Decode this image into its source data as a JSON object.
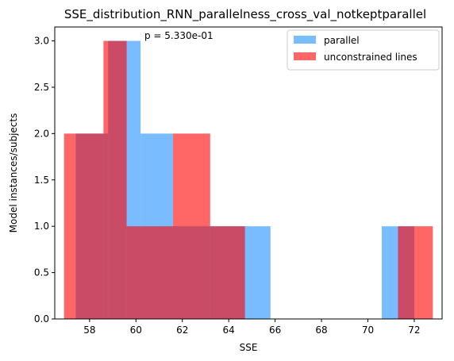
{
  "chart_data": {
    "type": "bar",
    "title": "SSE_distribution_RNN_parallelness_cross_val_notkeptparallel",
    "xlabel": "SSE",
    "ylabel": "Model instances/subjects",
    "xlim": [
      56.5,
      73.2
    ],
    "ylim": [
      0,
      3.15
    ],
    "x_ticks": [
      58,
      60,
      62,
      64,
      66,
      68,
      70,
      72
    ],
    "y_ticks": [
      0.0,
      0.5,
      1.0,
      1.5,
      2.0,
      2.5,
      3.0
    ],
    "annotation": "p = 5.330e-01",
    "legend_position": "top-right",
    "grid": false,
    "series": [
      {
        "name": "parallel",
        "color": "#1f8fff",
        "bins": [
          {
            "x0": 57.4,
            "x1": 58.8,
            "count": 2
          },
          {
            "x0": 58.8,
            "x1": 60.2,
            "count": 3
          },
          {
            "x0": 60.2,
            "x1": 61.6,
            "count": 2
          },
          {
            "x0": 61.6,
            "x1": 63.0,
            "count": 1
          },
          {
            "x0": 63.0,
            "x1": 64.4,
            "count": 1
          },
          {
            "x0": 64.4,
            "x1": 65.8,
            "count": 1
          },
          {
            "x0": 70.6,
            "x1": 72.0,
            "count": 1
          }
        ]
      },
      {
        "name": "unconstrained lines",
        "color": "#ff0000",
        "bins": [
          {
            "x0": 56.9,
            "x1": 57.4,
            "count": 2
          },
          {
            "x0": 57.4,
            "x1": 58.6,
            "count": 2
          },
          {
            "x0": 58.6,
            "x1": 59.6,
            "count": 3
          },
          {
            "x0": 59.6,
            "x1": 61.6,
            "count": 1
          },
          {
            "x0": 61.6,
            "x1": 63.2,
            "count": 2
          },
          {
            "x0": 63.2,
            "x1": 64.7,
            "count": 1
          },
          {
            "x0": 71.3,
            "x1": 72.8,
            "count": 1
          }
        ]
      }
    ]
  }
}
